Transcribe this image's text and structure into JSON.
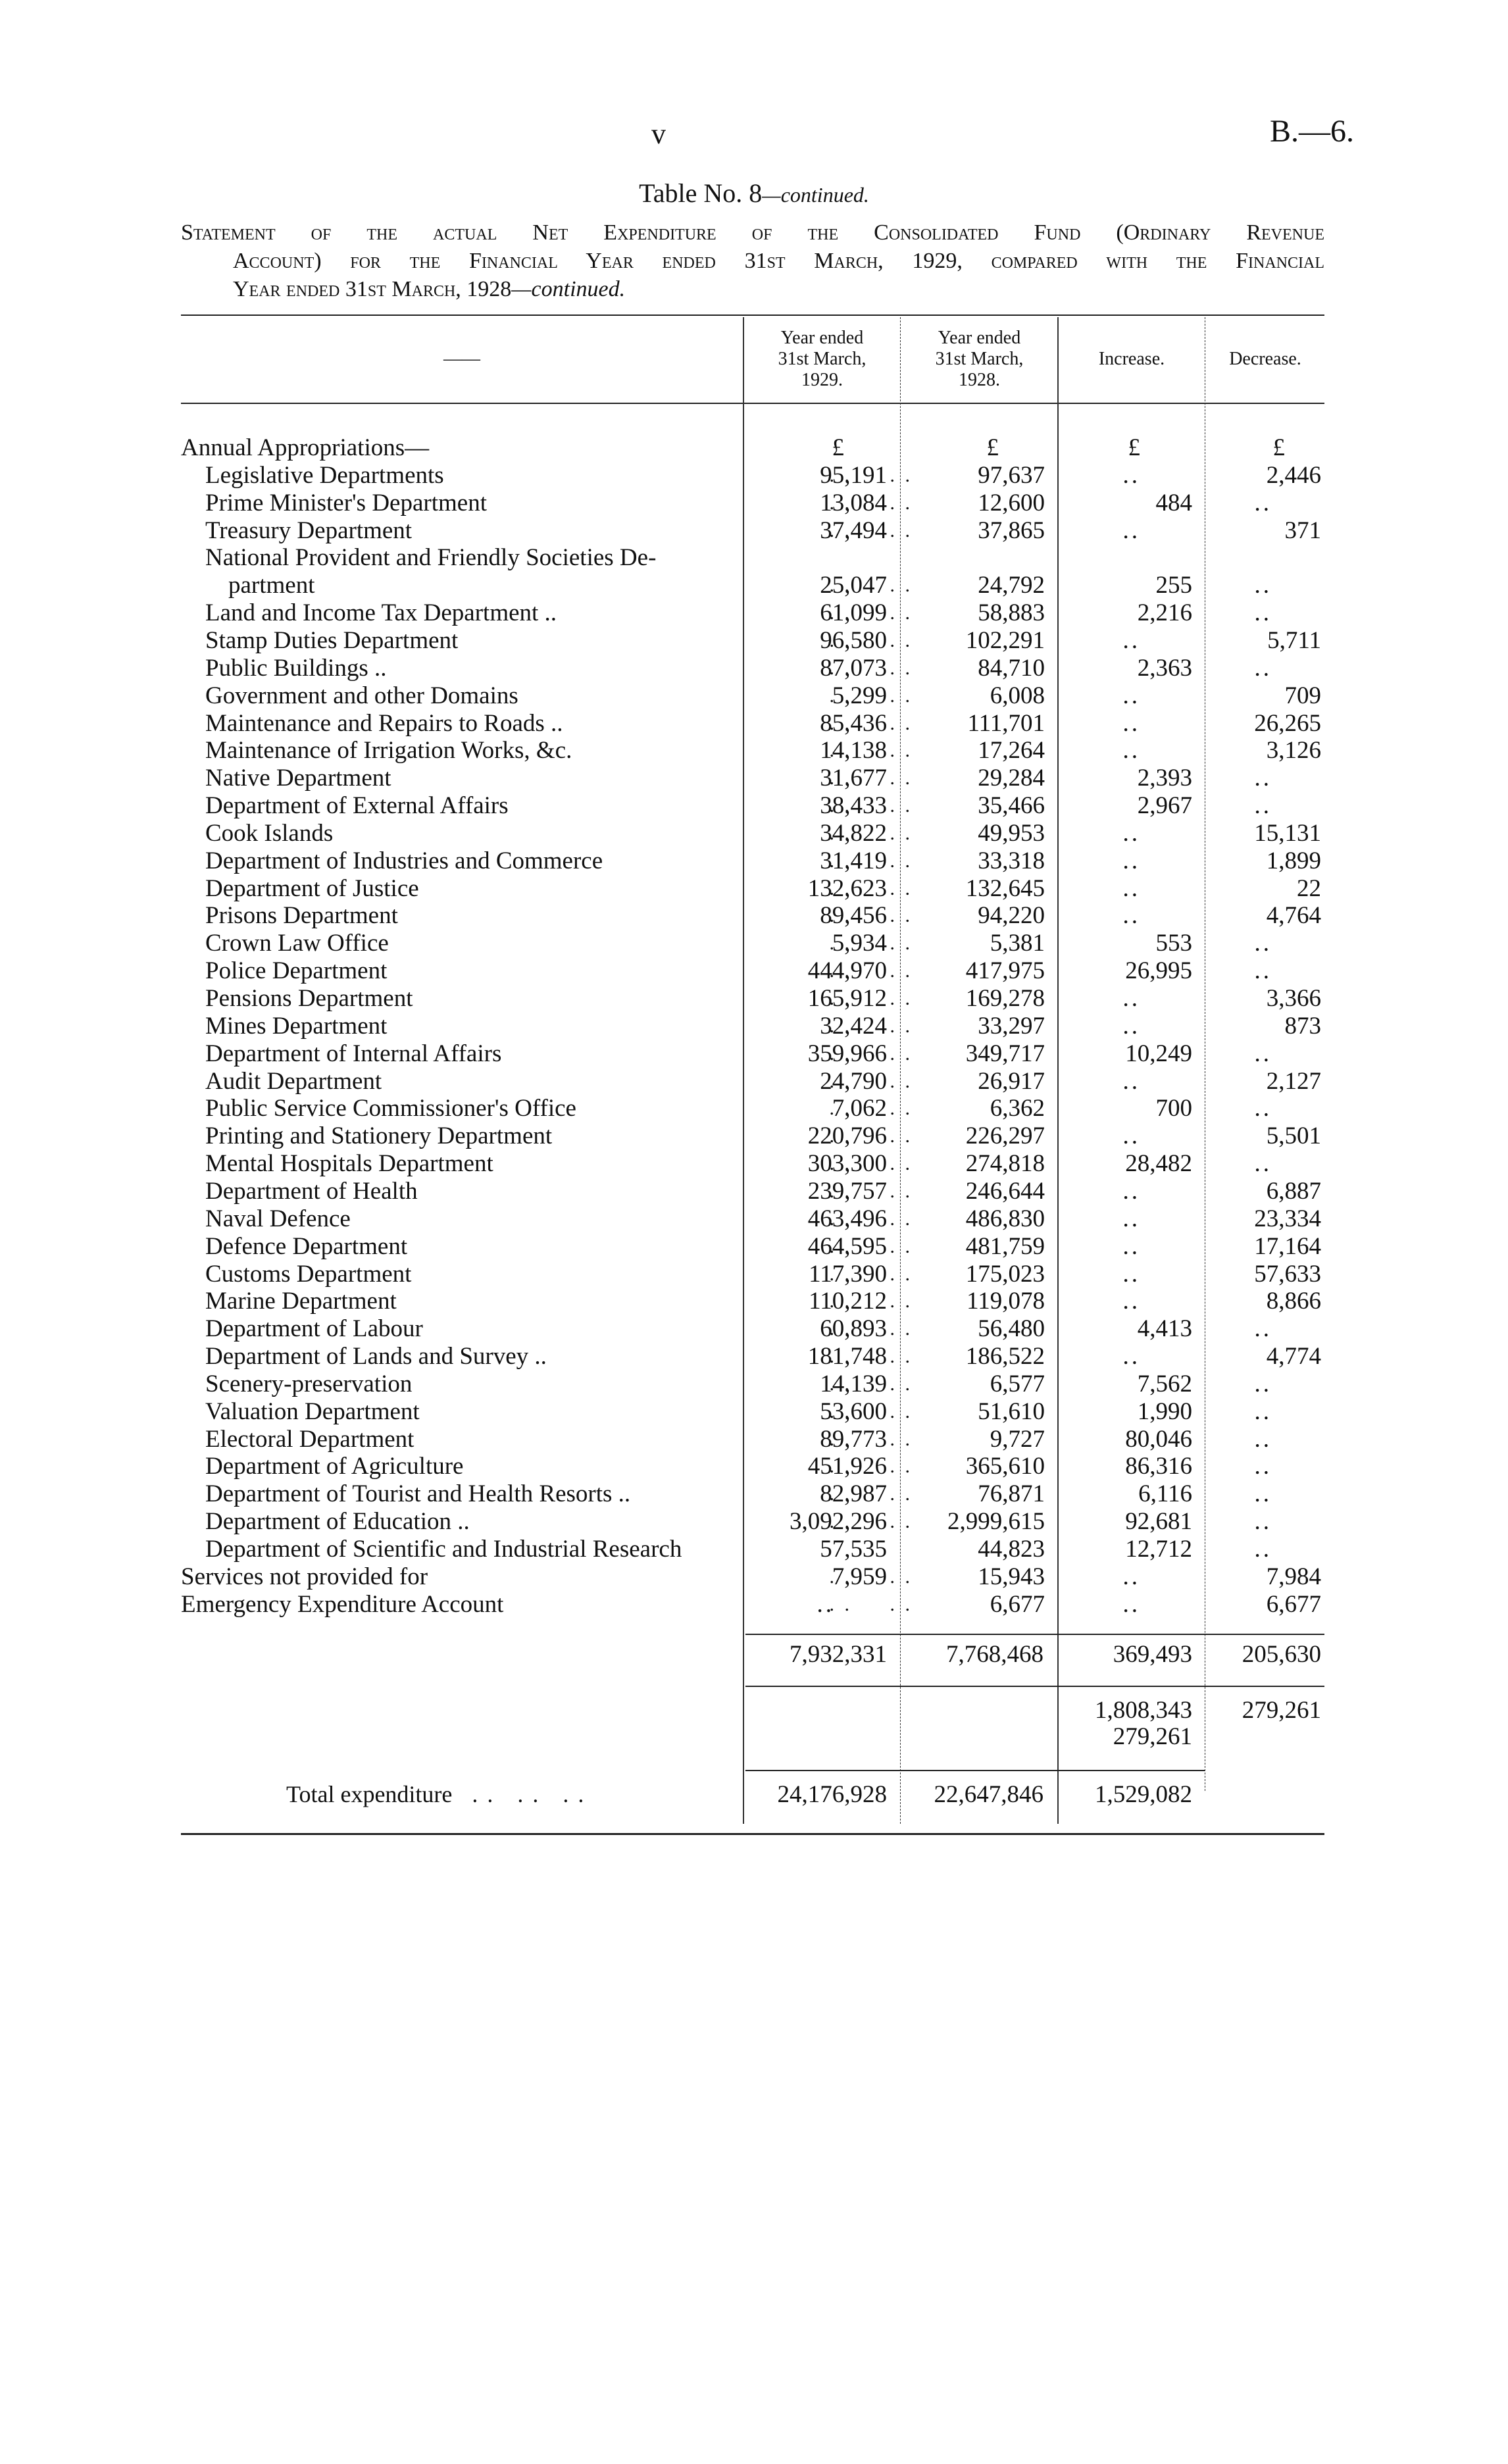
{
  "header": {
    "page_number": "v",
    "document_ref": "B.—6."
  },
  "title": {
    "main": "Table No. 8",
    "suffix": "—continued."
  },
  "statement": {
    "line1": "Statement of the actual Net Expenditure of the Consolidated Fund (Ordinary Revenue",
    "line2": "Account) for the Financial Year ended 31st March, 1929, compared with the Financial",
    "line3": "Year ended 31st March, 1928",
    "line3_suffix": "—continued."
  },
  "columns": {
    "description": "——",
    "col1": [
      "Year ended",
      "31st March,",
      "1929."
    ],
    "col2": [
      "Year ended",
      "31st March,",
      "1928."
    ],
    "col3": "Increase.",
    "col4": "Decrease."
  },
  "rows": [
    {
      "label": "Annual Appropriations—",
      "indent": 0,
      "v": [
        "£",
        "£",
        "£",
        "£"
      ],
      "leader": false
    },
    {
      "label": "Legislative Departments",
      "indent": 1,
      "v": [
        "95,191",
        "97,637",
        "..",
        "2,446"
      ]
    },
    {
      "label": "Prime Minister's Department",
      "indent": 1,
      "v": [
        "13,084",
        "12,600",
        "484",
        ".."
      ]
    },
    {
      "label": "Treasury Department",
      "indent": 1,
      "v": [
        "37,494",
        "37,865",
        "..",
        "371"
      ]
    },
    {
      "label": "National Provident and Friendly Societies De-",
      "indent": 1,
      "v": [
        "",
        "",
        "",
        ""
      ],
      "leader": false
    },
    {
      "label": "partment",
      "indent": 2,
      "v": [
        "25,047",
        "24,792",
        "255",
        ".."
      ]
    },
    {
      "label": "Land and Income Tax Department ..",
      "indent": 1,
      "v": [
        "61,099",
        "58,883",
        "2,216",
        ".."
      ]
    },
    {
      "label": "Stamp Duties Department",
      "indent": 1,
      "v": [
        "96,580",
        "102,291",
        "..",
        "5,711"
      ]
    },
    {
      "label": "Public Buildings ..",
      "indent": 1,
      "v": [
        "87,073",
        "84,710",
        "2,363",
        ".."
      ]
    },
    {
      "label": "Government and other Domains",
      "indent": 1,
      "v": [
        "5,299",
        "6,008",
        "..",
        "709"
      ]
    },
    {
      "label": "Maintenance and Repairs to Roads ..",
      "indent": 1,
      "v": [
        "85,436",
        "111,701",
        "..",
        "26,265"
      ]
    },
    {
      "label": "Maintenance of Irrigation Works, &c.",
      "indent": 1,
      "v": [
        "14,138",
        "17,264",
        "..",
        "3,126"
      ]
    },
    {
      "label": "Native Department",
      "indent": 1,
      "v": [
        "31,677",
        "29,284",
        "2,393",
        ".."
      ]
    },
    {
      "label": "Department of External Affairs",
      "indent": 1,
      "v": [
        "38,433",
        "35,466",
        "2,967",
        ".."
      ]
    },
    {
      "label": "Cook Islands",
      "indent": 1,
      "v": [
        "34,822",
        "49,953",
        "..",
        "15,131"
      ]
    },
    {
      "label": "Department of Industries and Commerce",
      "indent": 1,
      "v": [
        "31,419",
        "33,318",
        "..",
        "1,899"
      ]
    },
    {
      "label": "Department of Justice",
      "indent": 1,
      "v": [
        "132,623",
        "132,645",
        "..",
        "22"
      ]
    },
    {
      "label": "Prisons Department",
      "indent": 1,
      "v": [
        "89,456",
        "94,220",
        "..",
        "4,764"
      ]
    },
    {
      "label": "Crown Law Office",
      "indent": 1,
      "v": [
        "5,934",
        "5,381",
        "553",
        ".."
      ]
    },
    {
      "label": "Police Department",
      "indent": 1,
      "v": [
        "444,970",
        "417,975",
        "26,995",
        ".."
      ]
    },
    {
      "label": "Pensions Department",
      "indent": 1,
      "v": [
        "165,912",
        "169,278",
        "..",
        "3,366"
      ]
    },
    {
      "label": "Mines Department",
      "indent": 1,
      "v": [
        "32,424",
        "33,297",
        "..",
        "873"
      ]
    },
    {
      "label": "Department of Internal Affairs",
      "indent": 1,
      "v": [
        "359,966",
        "349,717",
        "10,249",
        ".."
      ]
    },
    {
      "label": "Audit Department",
      "indent": 1,
      "v": [
        "24,790",
        "26,917",
        "..",
        "2,127"
      ]
    },
    {
      "label": "Public Service Commissioner's Office",
      "indent": 1,
      "v": [
        "7,062",
        "6,362",
        "700",
        ".."
      ]
    },
    {
      "label": "Printing and Stationery Department",
      "indent": 1,
      "v": [
        "220,796",
        "226,297",
        "..",
        "5,501"
      ]
    },
    {
      "label": "Mental Hospitals Department",
      "indent": 1,
      "v": [
        "303,300",
        "274,818",
        "28,482",
        ".."
      ]
    },
    {
      "label": "Department of Health",
      "indent": 1,
      "v": [
        "239,757",
        "246,644",
        "..",
        "6,887"
      ]
    },
    {
      "label": "Naval Defence",
      "indent": 1,
      "v": [
        "463,496",
        "486,830",
        "..",
        "23,334"
      ]
    },
    {
      "label": "Defence Department",
      "indent": 1,
      "v": [
        "464,595",
        "481,759",
        "..",
        "17,164"
      ]
    },
    {
      "label": "Customs Department",
      "indent": 1,
      "v": [
        "117,390",
        "175,023",
        "..",
        "57,633"
      ]
    },
    {
      "label": "Marine Department",
      "indent": 1,
      "v": [
        "110,212",
        "119,078",
        "..",
        "8,866"
      ]
    },
    {
      "label": "Department of Labour",
      "indent": 1,
      "v": [
        "60,893",
        "56,480",
        "4,413",
        ".."
      ]
    },
    {
      "label": "Department of Lands and Survey ..",
      "indent": 1,
      "v": [
        "181,748",
        "186,522",
        "..",
        "4,774"
      ]
    },
    {
      "label": "Scenery-preservation",
      "indent": 1,
      "v": [
        "14,139",
        "6,577",
        "7,562",
        ".."
      ]
    },
    {
      "label": "Valuation Department",
      "indent": 1,
      "v": [
        "53,600",
        "51,610",
        "1,990",
        ".."
      ]
    },
    {
      "label": "Electoral Department",
      "indent": 1,
      "v": [
        "89,773",
        "9,727",
        "80,046",
        ".."
      ]
    },
    {
      "label": "Department of Agriculture",
      "indent": 1,
      "v": [
        "451,926",
        "365,610",
        "86,316",
        ".."
      ]
    },
    {
      "label": "Department of Tourist and Health Resorts ..",
      "indent": 1,
      "v": [
        "82,987",
        "76,871",
        "6,116",
        ".."
      ]
    },
    {
      "label": "Department of Education ..",
      "indent": 1,
      "v": [
        "3,092,296",
        "2,999,615",
        "92,681",
        ".."
      ]
    },
    {
      "label": "Department of Scientific and Industrial Research",
      "indent": 1,
      "v": [
        "57,535",
        "44,823",
        "12,712",
        ".."
      ],
      "leader": false
    },
    {
      "label": "Services not provided for",
      "indent": 0,
      "v": [
        "7,959",
        "15,943",
        "..",
        "7,984"
      ]
    },
    {
      "label": "Emergency Expenditure Account",
      "indent": 0,
      "v": [
        "..",
        "6,677",
        "..",
        "6,677"
      ]
    }
  ],
  "subtotals": {
    "col1": "7,932,331",
    "col2": "7,768,468",
    "col3": "369,493",
    "col4": "205,630"
  },
  "balances": {
    "col3_line1": "1,808,343",
    "col3_line2": "279,261",
    "col4": "279,261"
  },
  "total": {
    "label": "Total expenditure",
    "leader": ".. .. ..",
    "col1": "24,176,928",
    "col2": "22,647,846",
    "col3": "1,529,082"
  }
}
